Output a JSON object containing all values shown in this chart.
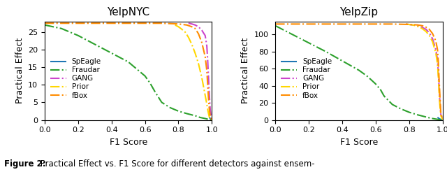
{
  "title_left": "YelpNYC",
  "title_right": "YelpZip",
  "xlabel": "F1 Score",
  "ylabel": "Practical Effect",
  "caption_bold": "Figure 2:",
  "caption_rest": " Practical Effect vs. F1 Score for different detectors against ensem-",
  "detectors": [
    "SpEagle",
    "Fraudar",
    "GANG",
    "Prior",
    "fBox"
  ],
  "colors": {
    "SpEagle": "#1f77b4",
    "Fraudar": "#2ca02c",
    "GANG": "#cc44cc",
    "Prior": "#FFD700",
    "fBox": "#FF8C00"
  },
  "linestyles": {
    "SpEagle": "-",
    "Fraudar": "-.",
    "GANG": "-.",
    "Prior": "-.",
    "fBox": "-."
  },
  "nyc": {
    "SpEagle": {
      "x": [
        0.985,
        0.99,
        0.995,
        1.0
      ],
      "y": [
        0.8,
        0.4,
        0.1,
        0.0
      ]
    },
    "Fraudar": {
      "x": [
        0.0,
        0.05,
        0.1,
        0.15,
        0.2,
        0.3,
        0.4,
        0.5,
        0.55,
        0.6,
        0.63,
        0.66,
        0.68,
        0.7,
        0.75,
        0.8,
        0.85,
        0.9,
        0.93,
        0.96,
        0.98,
        0.99,
        1.0
      ],
      "y": [
        27.0,
        26.5,
        26.0,
        25.0,
        24.0,
        21.5,
        19.0,
        16.5,
        14.5,
        12.5,
        10.5,
        8.0,
        6.5,
        5.0,
        3.5,
        2.5,
        1.8,
        1.2,
        0.7,
        0.4,
        0.15,
        0.05,
        0.0
      ]
    },
    "GANG": {
      "x": [
        0.86,
        0.88,
        0.9,
        0.92,
        0.94,
        0.96,
        0.97,
        0.975,
        0.98,
        0.985,
        0.99,
        0.995,
        1.0
      ],
      "y": [
        27.5,
        27.3,
        27.0,
        26.5,
        25.5,
        24.0,
        21.0,
        17.0,
        12.0,
        7.0,
        3.0,
        1.0,
        0.2
      ]
    },
    "Prior": {
      "x": [
        0.78,
        0.8,
        0.82,
        0.84,
        0.86,
        0.88,
        0.9,
        0.92,
        0.94,
        0.96,
        0.97,
        0.975,
        0.98,
        0.985,
        0.99,
        1.0
      ],
      "y": [
        27.0,
        26.5,
        25.8,
        25.0,
        23.5,
        21.5,
        19.0,
        16.0,
        12.0,
        7.0,
        4.5,
        3.0,
        1.8,
        0.8,
        0.3,
        0.0
      ]
    },
    "fBox": {
      "x": [
        0.0,
        0.1,
        0.3,
        0.5,
        0.7,
        0.8,
        0.85,
        0.88,
        0.9,
        0.92,
        0.94,
        0.96,
        0.97,
        0.975,
        0.98,
        0.985,
        0.99,
        1.0
      ],
      "y": [
        27.5,
        27.5,
        27.5,
        27.5,
        27.5,
        27.3,
        27.0,
        26.5,
        26.0,
        24.5,
        22.0,
        18.0,
        14.0,
        10.0,
        6.0,
        3.0,
        1.0,
        0.2
      ]
    }
  },
  "zip": {
    "SpEagle": {
      "x": [
        0.97,
        0.98,
        0.99,
        0.995,
        1.0
      ],
      "y": [
        3.0,
        1.5,
        0.5,
        0.1,
        0.0
      ]
    },
    "Fraudar": {
      "x": [
        0.0,
        0.02,
        0.05,
        0.1,
        0.15,
        0.2,
        0.3,
        0.4,
        0.5,
        0.55,
        0.6,
        0.63,
        0.65,
        0.68,
        0.7,
        0.75,
        0.8,
        0.85,
        0.9,
        0.93,
        0.96,
        0.98,
        0.99,
        1.0
      ],
      "y": [
        110.0,
        108.0,
        105.0,
        100.0,
        95.0,
        90.0,
        80.0,
        69.0,
        58.0,
        51.0,
        42.0,
        35.0,
        28.0,
        22.0,
        18.0,
        13.0,
        9.0,
        6.0,
        3.5,
        2.0,
        1.0,
        0.4,
        0.1,
        0.0
      ]
    },
    "GANG": {
      "x": [
        0.78,
        0.8,
        0.82,
        0.84,
        0.86,
        0.88,
        0.9,
        0.92,
        0.94,
        0.96,
        0.97,
        0.975,
        0.98,
        0.985,
        0.99,
        1.0
      ],
      "y": [
        112.0,
        111.5,
        111.0,
        110.5,
        109.5,
        108.0,
        106.0,
        102.0,
        95.0,
        82.0,
        70.0,
        55.0,
        35.0,
        18.0,
        6.0,
        1.0
      ]
    },
    "Prior": {
      "x": [
        0.78,
        0.8,
        0.82,
        0.84,
        0.86,
        0.88,
        0.9,
        0.92,
        0.94,
        0.96,
        0.97,
        0.975,
        0.98,
        0.985,
        0.99,
        1.0
      ],
      "y": [
        112.0,
        111.5,
        111.0,
        110.0,
        108.5,
        106.5,
        103.5,
        99.0,
        91.5,
        78.0,
        65.0,
        50.0,
        30.0,
        15.0,
        5.0,
        0.5
      ]
    },
    "fBox": {
      "x": [
        0.0,
        0.1,
        0.3,
        0.5,
        0.7,
        0.8,
        0.85,
        0.88,
        0.9,
        0.92,
        0.94,
        0.96,
        0.97,
        0.975,
        0.98,
        0.985,
        0.99,
        1.0
      ],
      "y": [
        112.0,
        112.0,
        112.0,
        112.0,
        112.0,
        111.5,
        111.0,
        110.0,
        108.5,
        106.0,
        101.0,
        92.0,
        82.0,
        68.0,
        45.0,
        25.0,
        8.0,
        1.0
      ]
    }
  },
  "nyc_ylim": [
    0,
    28
  ],
  "zip_ylim": [
    0,
    115
  ],
  "xlim": [
    0.0,
    1.0
  ],
  "nyc_yticks": [
    0,
    5,
    10,
    15,
    20,
    25
  ],
  "zip_yticks": [
    0,
    20,
    40,
    60,
    80,
    100
  ]
}
